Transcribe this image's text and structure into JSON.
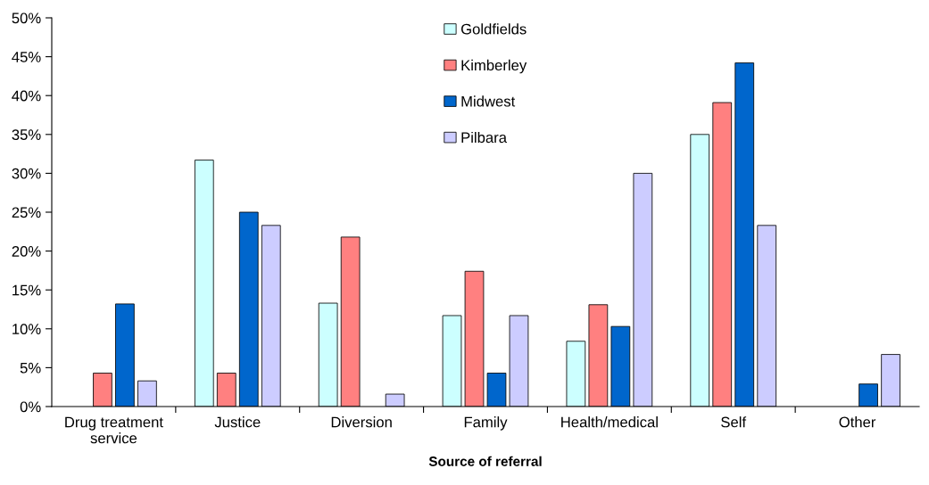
{
  "chart_data": {
    "type": "bar",
    "xlabel": "Source of referral",
    "categories": [
      "Drug treatment\nservice",
      "Justice",
      "Diversion",
      "Family",
      "Health/medical",
      "Self",
      "Other"
    ],
    "series": [
      {
        "name": "Goldfields",
        "color": "#ccffff",
        "values": [
          0,
          31.7,
          13.3,
          11.7,
          8.4,
          35.0,
          0
        ]
      },
      {
        "name": "Kimberley",
        "color": "#ff8080",
        "values": [
          4.3,
          4.3,
          21.8,
          17.4,
          13.1,
          39.1,
          0
        ]
      },
      {
        "name": "Midwest",
        "color": "#0066cc",
        "values": [
          13.2,
          25.0,
          0,
          4.3,
          10.3,
          44.2,
          2.9
        ]
      },
      {
        "name": "Pilbara",
        "color": "#ccccff",
        "values": [
          3.3,
          23.3,
          1.6,
          11.7,
          30.0,
          23.3,
          6.7
        ]
      }
    ],
    "ylim": [
      0,
      50
    ],
    "yticks": [
      {
        "value": 0,
        "label": "0%"
      },
      {
        "value": 5,
        "label": "5%"
      },
      {
        "value": 10,
        "label": "10%"
      },
      {
        "value": 15,
        "label": "15%"
      },
      {
        "value": 20,
        "label": "20%"
      },
      {
        "value": 25,
        "label": "25%"
      },
      {
        "value": 30,
        "label": "30%"
      },
      {
        "value": 35,
        "label": "35%"
      },
      {
        "value": 40,
        "label": "40%"
      },
      {
        "value": 45,
        "label": "45%"
      },
      {
        "value": 50,
        "label": "50%"
      }
    ],
    "grid": false,
    "legend": "top"
  }
}
